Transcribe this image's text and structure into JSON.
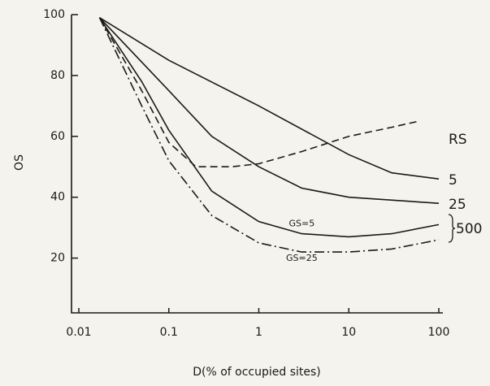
{
  "chart_data": {
    "type": "line",
    "x_label": "D(% of occupied sites)",
    "y_label": "OS",
    "xlim": [
      0.01,
      100
    ],
    "xticks": [
      0.01,
      0.1,
      1,
      10,
      100
    ],
    "log_x": true,
    "ylim": [
      2,
      100
    ],
    "yticks": [
      20,
      40,
      60,
      80,
      100
    ],
    "legend_title": "RS",
    "annotation": "500",
    "series": [
      {
        "name": "5",
        "color": "#1a1a1a",
        "style": "solid",
        "x": [
          0.017,
          0.1,
          1,
          10,
          30,
          100
        ],
        "values": [
          99,
          85,
          70,
          54,
          48,
          46
        ]
      },
      {
        "name": "25",
        "color": "#1a1a1a",
        "style": "solid",
        "x": [
          0.017,
          0.1,
          0.3,
          1,
          3,
          10,
          100
        ],
        "values": [
          99,
          75,
          60,
          50,
          43,
          40,
          38
        ]
      },
      {
        "name": "GS=5",
        "color": "#1a1a1a",
        "style": "solid",
        "x": [
          0.017,
          0.05,
          0.1,
          0.3,
          1,
          3,
          10,
          30,
          100
        ],
        "values": [
          99,
          78,
          62,
          42,
          32,
          28,
          27,
          28,
          31
        ]
      },
      {
        "name": "GS=25",
        "color": "#1a1a1a",
        "style": "dashdot",
        "x": [
          0.017,
          0.05,
          0.1,
          0.3,
          1,
          3,
          10,
          30,
          100
        ],
        "values": [
          99,
          70,
          52,
          34,
          25,
          22,
          22,
          23,
          26
        ]
      },
      {
        "color": "#1a1a1a",
        "style": "dashed",
        "x": [
          0.017,
          0.05,
          0.1,
          0.2,
          0.5,
          1,
          3,
          10,
          30,
          60
        ],
        "values": [
          99,
          75,
          58,
          50,
          50,
          51,
          55,
          60,
          63,
          65
        ]
      }
    ]
  }
}
